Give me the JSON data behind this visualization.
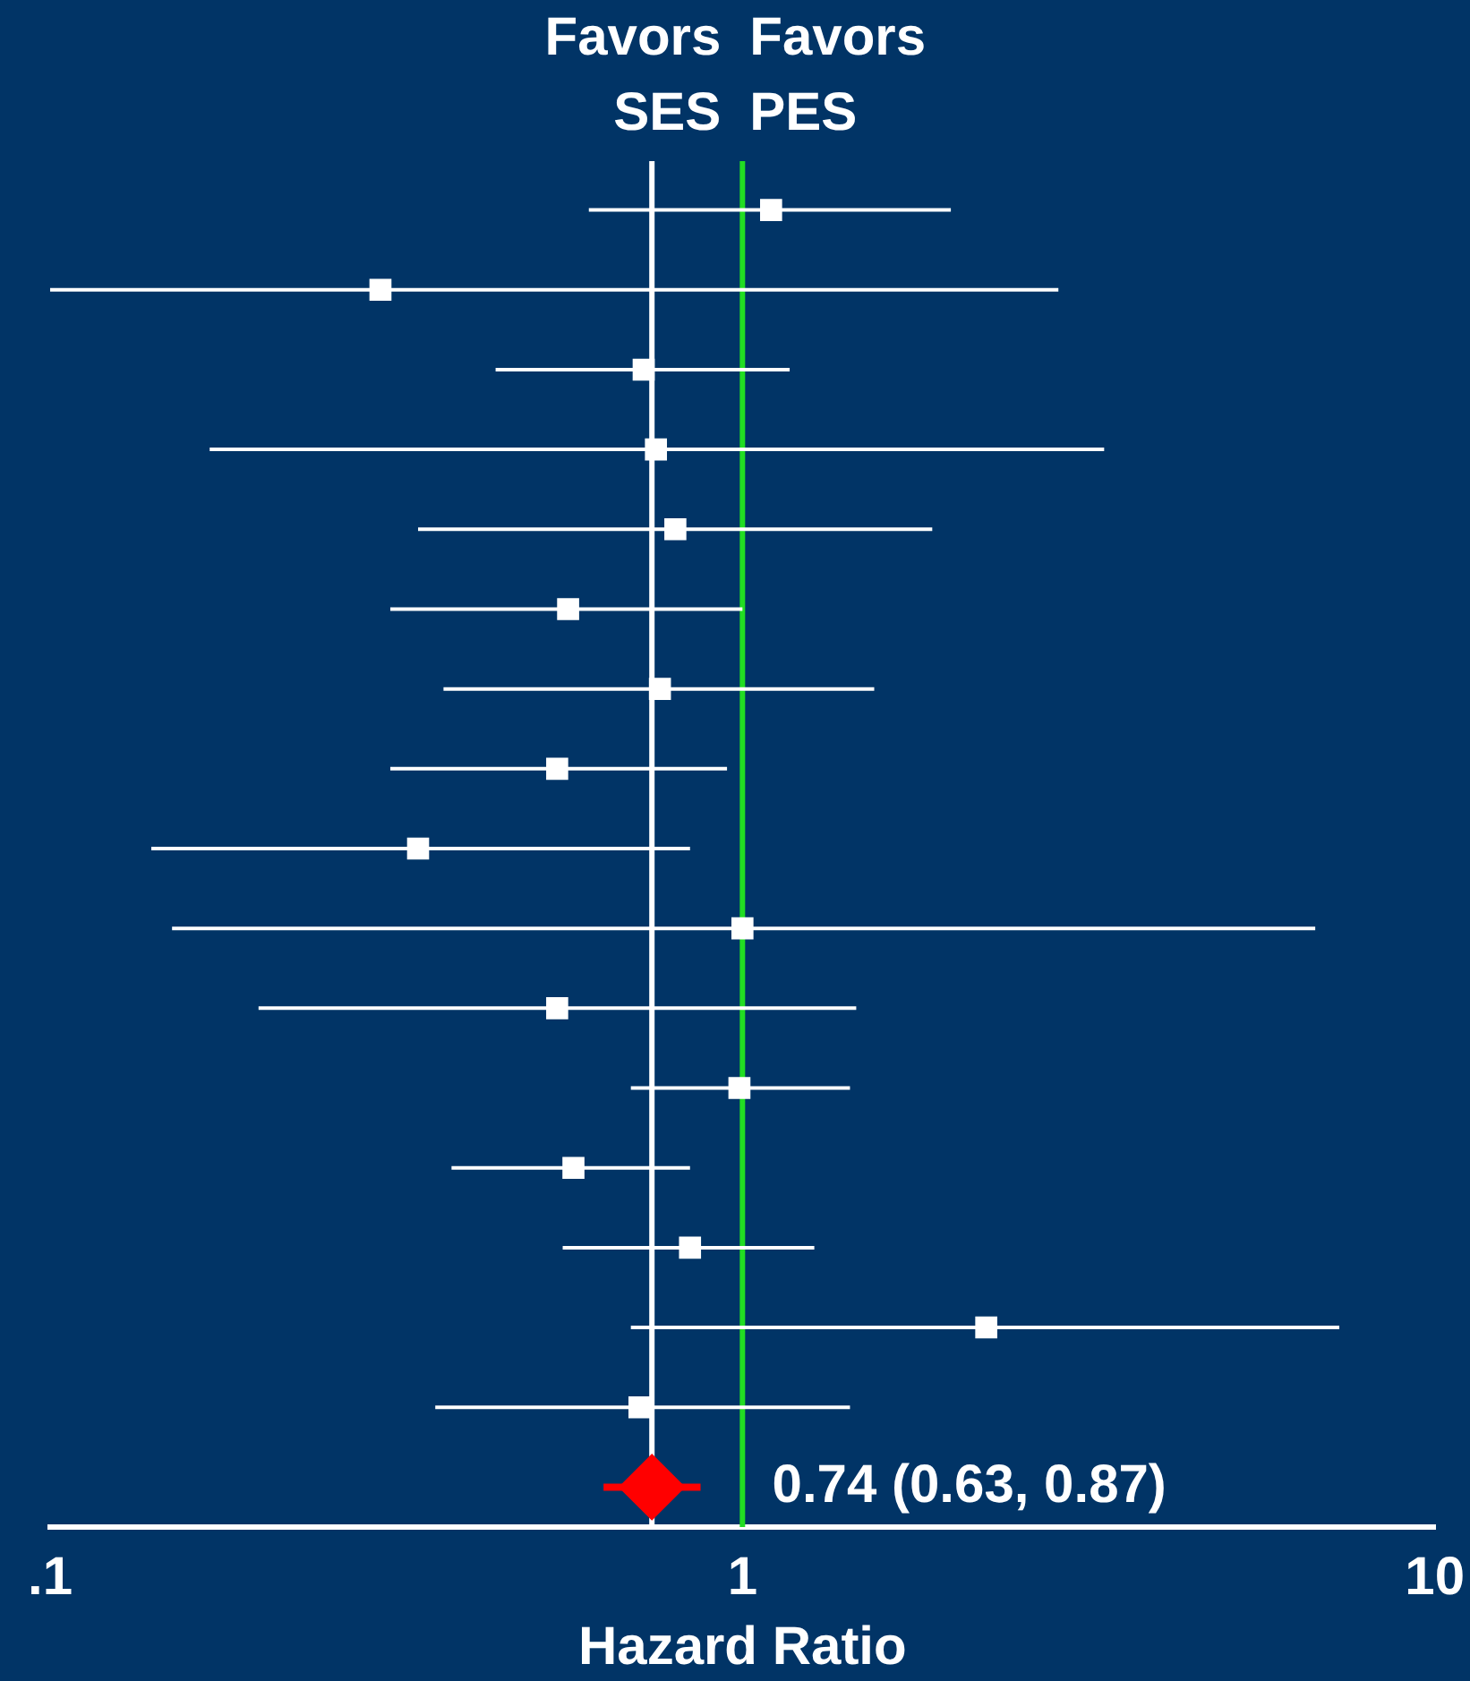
{
  "chart_data": {
    "type": "scatter",
    "orientation": "horizontal",
    "xlabel": "Hazard Ratio",
    "log": "x",
    "xlim": [
      0.1,
      10
    ],
    "xticks": [
      {
        "value": 0.1,
        "label": ".1"
      },
      1,
      10
    ],
    "tick_labels": "x",
    "grid": false,
    "legend": false,
    "categories": [
      null,
      null,
      null,
      null,
      null,
      null,
      null,
      null,
      null,
      null,
      null,
      null,
      null,
      null,
      null,
      null,
      null
    ],
    "series": [
      {
        "color": "#ffffff",
        "marker": "square",
        "values": [
          1.1,
          0.3,
          0.72,
          0.75,
          0.8,
          0.56,
          0.76,
          0.54,
          0.34,
          1.0,
          0.54,
          0.99,
          0.57,
          0.84,
          2.25,
          0.71,
          null
        ],
        "errors": [
          [
            0.6,
            2.0
          ],
          [
            0.1,
            2.86
          ],
          [
            0.44,
            1.17
          ],
          [
            0.17,
            3.33
          ],
          [
            0.34,
            1.88
          ],
          [
            0.31,
            1.0
          ],
          [
            0.37,
            1.55
          ],
          [
            0.31,
            0.95
          ],
          [
            0.14,
            0.84
          ],
          [
            0.15,
            6.72
          ],
          [
            0.2,
            1.46
          ],
          [
            0.69,
            1.43
          ],
          [
            0.38,
            0.84
          ],
          [
            0.55,
            1.27
          ],
          [
            0.69,
            7.28
          ],
          [
            0.36,
            1.43
          ],
          null
        ]
      },
      {
        "color": "#ff0000",
        "marker": "diamond",
        "values": [
          null,
          null,
          null,
          null,
          null,
          null,
          null,
          null,
          null,
          null,
          null,
          null,
          null,
          null,
          null,
          null,
          0.74
        ],
        "errors": [
          null,
          null,
          null,
          null,
          null,
          null,
          null,
          null,
          null,
          null,
          null,
          null,
          null,
          null,
          null,
          null,
          [
            0.63,
            0.87
          ]
        ],
        "value_labels": [
          null,
          null,
          null,
          null,
          null,
          null,
          null,
          null,
          null,
          null,
          null,
          null,
          null,
          null,
          null,
          null,
          "0.74 (0.63, 0.87)"
        ]
      }
    ],
    "ref_lines": [
      {
        "axis": "x",
        "value": 1,
        "color": "#22dd22"
      },
      {
        "axis": "x",
        "value": 0.74,
        "color": "#ffffff"
      }
    ],
    "annotations": [
      "Favors SES",
      "Favors PES"
    ]
  }
}
